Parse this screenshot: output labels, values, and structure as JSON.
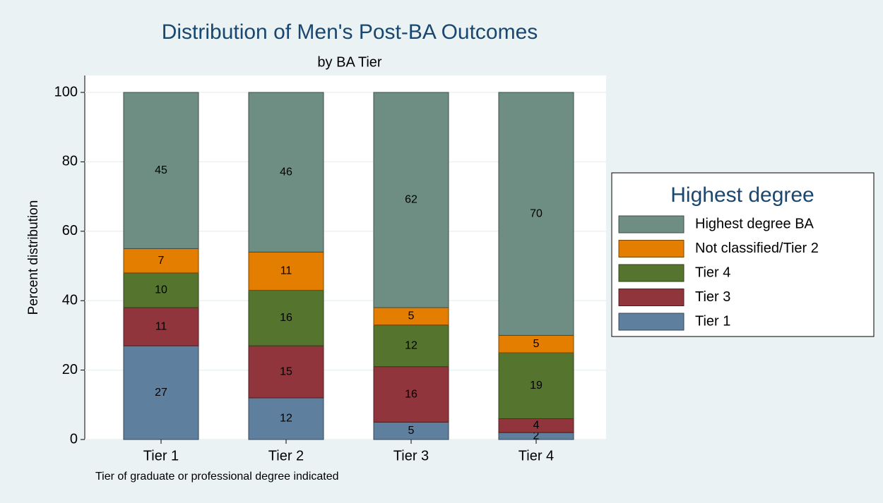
{
  "chart_data": {
    "type": "stacked_bar",
    "title": "Distribution of Men's Post-BA Outcomes",
    "subtitle": "by BA Tier",
    "ylabel": "Percent distribution",
    "note": "Tier of graduate or professional degree indicated",
    "legend_title": "Highest degree",
    "legend_position": "right",
    "categories": [
      "Tier 1",
      "Tier 2",
      "Tier 3",
      "Tier 4"
    ],
    "series": [
      {
        "name": "Tier 1",
        "color": "#5f7f9e",
        "values": [
          27,
          12,
          5,
          2
        ]
      },
      {
        "name": "Tier 3",
        "color": "#90353b",
        "values": [
          11,
          15,
          16,
          4
        ]
      },
      {
        "name": "Tier 4",
        "color": "#55752f",
        "values": [
          10,
          16,
          12,
          19
        ]
      },
      {
        "name": "Not classified/Tier 2",
        "color": "#e37e00",
        "values": [
          7,
          11,
          5,
          5
        ]
      },
      {
        "name": "Highest degree BA",
        "color": "#6e8e84",
        "values": [
          45,
          46,
          62,
          70
        ]
      }
    ],
    "ylim": [
      0,
      100
    ],
    "yticks": [
      0,
      20,
      40,
      60,
      80,
      100
    ],
    "grid": true
  }
}
